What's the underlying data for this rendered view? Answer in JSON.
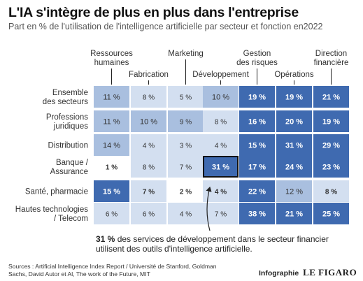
{
  "title": "L'IA s'intègre de plus en plus dans l'entreprise",
  "subtitle": "Part en % de l'utilisation de l'intelligence artificielle par secteur et fonction en2022",
  "chart_data": {
    "type": "heatmap",
    "unit": "%",
    "columns": [
      "Ressources humaines",
      "Fabrication",
      "Marketing",
      "Développement",
      "Gestion des risques",
      "Opérations",
      "Direction financière"
    ],
    "rows": [
      "Ensemble des secteurs",
      "Professions juridiques",
      "Distribution",
      "Banque / Assurance",
      "Santé, pharmacie",
      "Hautes technologies / Telecom"
    ],
    "values": [
      [
        11,
        8,
        5,
        10,
        19,
        19,
        21
      ],
      [
        11,
        10,
        9,
        8,
        16,
        20,
        19
      ],
      [
        14,
        4,
        3,
        4,
        15,
        31,
        29
      ],
      [
        1,
        8,
        7,
        31,
        17,
        24,
        23
      ],
      [
        15,
        7,
        2,
        4,
        22,
        12,
        8
      ],
      [
        6,
        6,
        4,
        7,
        38,
        21,
        25
      ]
    ],
    "highlight": {
      "row": "Banque / Assurance",
      "column": "Développement",
      "value": 31
    },
    "annotation": {
      "bold": "31 %",
      "text": " des services de développement dans le secteur financier utilisent des outils d'intelligence artificielle."
    },
    "colors": {
      "light": "#d3dff0",
      "medium": "#a9bfdf",
      "dark_cell": "#3f6ab0",
      "white_cell": "#ffffff",
      "highlight_border": "#111111"
    }
  },
  "sources": "Sources : Artificial Intelligence Index Report / Université de Stanford, Goldman Sachs, David Autor et Al, The work of the Future, MIT",
  "credit": {
    "label": "Infographie",
    "logo": "LE FIGARO"
  }
}
